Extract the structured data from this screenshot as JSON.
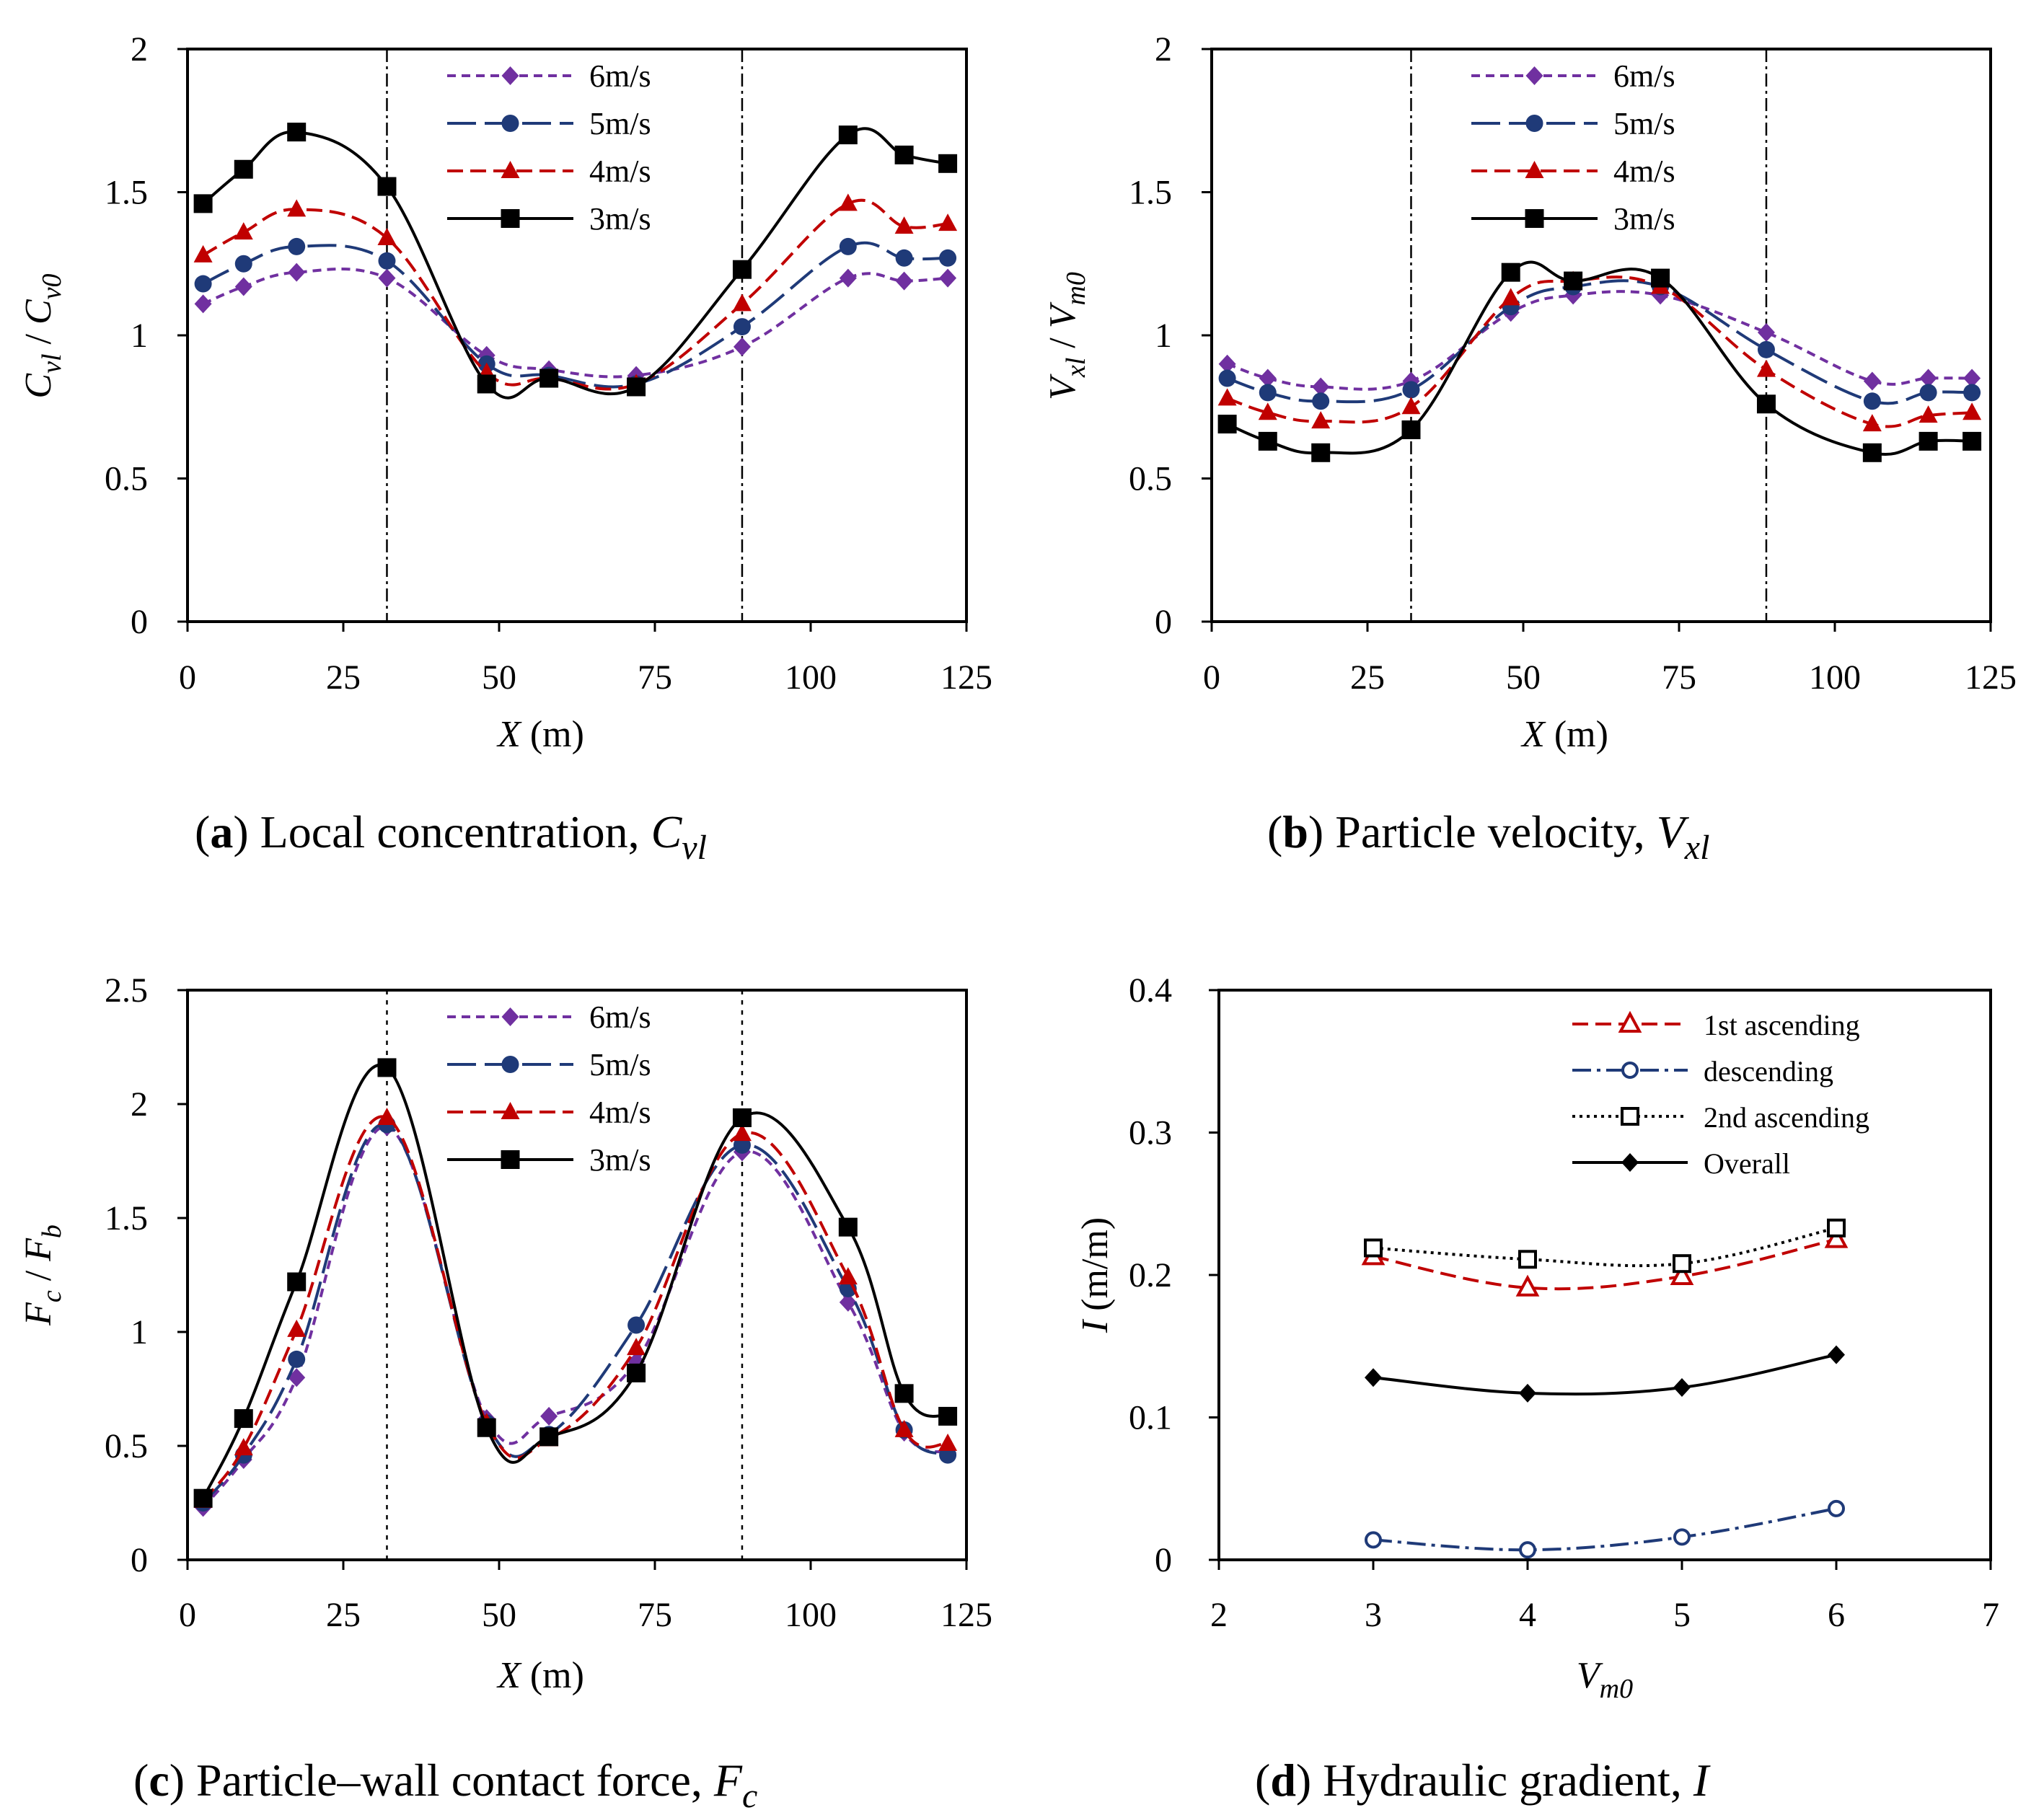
{
  "chart_data": [
    {
      "id": "a",
      "type": "line",
      "caption": {
        "letter": "a",
        "text": " Local concentration, ",
        "symbol": "C",
        "sub": "vl"
      },
      "ylabel": {
        "num": "C",
        "num_sub": "vl",
        "sep": " / ",
        "den": "C",
        "den_sub": "v0"
      },
      "xlabel": {
        "var": "X",
        "unit": " (m)"
      },
      "xlim": [
        0,
        125
      ],
      "ylim": [
        0,
        2
      ],
      "xticks": [
        0,
        25,
        50,
        75,
        100,
        125
      ],
      "yticks": [
        0,
        0.5,
        1,
        1.5,
        2
      ],
      "ytick_labels": [
        "0",
        "0.5",
        "1",
        "1.5",
        "2"
      ],
      "vlines": [
        32,
        89
      ],
      "x": [
        2.5,
        9,
        17.5,
        32,
        48,
        58,
        72,
        89,
        106,
        115,
        122
      ],
      "series": [
        {
          "name": "6m/s",
          "values": [
            1.11,
            1.17,
            1.22,
            1.2,
            0.93,
            0.88,
            0.86,
            0.96,
            1.2,
            1.19,
            1.2
          ],
          "color": "#7030a0",
          "marker": "diamond",
          "dash": "12 8"
        },
        {
          "name": "5m/s",
          "values": [
            1.18,
            1.25,
            1.31,
            1.26,
            0.9,
            0.86,
            0.83,
            1.03,
            1.31,
            1.27,
            1.27
          ],
          "color": "#1f3a78",
          "marker": "circle",
          "dash": "40 12"
        },
        {
          "name": "4m/s",
          "values": [
            1.28,
            1.36,
            1.44,
            1.34,
            0.87,
            0.85,
            0.83,
            1.11,
            1.46,
            1.38,
            1.39
          ],
          "color": "#c00000",
          "marker": "triangle",
          "dash": "22 10"
        },
        {
          "name": "3m/s",
          "values": [
            1.46,
            1.58,
            1.71,
            1.52,
            0.83,
            0.85,
            0.82,
            1.23,
            1.7,
            1.63,
            1.6
          ],
          "color": "#000000",
          "marker": "square",
          "dash": ""
        }
      ]
    },
    {
      "id": "b",
      "type": "line",
      "caption": {
        "letter": "b",
        "text": " Particle velocity, ",
        "symbol": "V",
        "sub": "xl"
      },
      "ylabel": {
        "num": "V",
        "num_sub": "xl",
        "sep": " / ",
        "den": "V",
        "den_sub": "m0"
      },
      "xlabel": {
        "var": "X",
        "unit": " (m)"
      },
      "xlim": [
        0,
        125
      ],
      "ylim": [
        0,
        2
      ],
      "xticks": [
        0,
        25,
        50,
        75,
        100,
        125
      ],
      "yticks": [
        0,
        0.5,
        1,
        1.5,
        2
      ],
      "ytick_labels": [
        "0",
        "0.5",
        "1",
        "1.5",
        "2"
      ],
      "vlines": [
        32,
        89
      ],
      "x": [
        2.5,
        9,
        17.5,
        32,
        48,
        58,
        72,
        89,
        106,
        115,
        122
      ],
      "series": [
        {
          "name": "6m/s",
          "values": [
            0.9,
            0.85,
            0.82,
            0.84,
            1.08,
            1.14,
            1.14,
            1.01,
            0.84,
            0.85,
            0.85
          ],
          "color": "#7030a0",
          "marker": "diamond",
          "dash": "12 8"
        },
        {
          "name": "5m/s",
          "values": [
            0.85,
            0.8,
            0.77,
            0.81,
            1.1,
            1.17,
            1.17,
            0.95,
            0.77,
            0.8,
            0.8
          ],
          "color": "#1f3a78",
          "marker": "circle",
          "dash": "40 12"
        },
        {
          "name": "4m/s",
          "values": [
            0.78,
            0.73,
            0.7,
            0.75,
            1.13,
            1.19,
            1.17,
            0.88,
            0.69,
            0.72,
            0.73
          ],
          "color": "#c00000",
          "marker": "triangle",
          "dash": "22 10"
        },
        {
          "name": "3m/s",
          "values": [
            0.69,
            0.63,
            0.59,
            0.67,
            1.22,
            1.19,
            1.2,
            0.76,
            0.59,
            0.63,
            0.63
          ],
          "color": "#000000",
          "marker": "square",
          "dash": ""
        }
      ]
    },
    {
      "id": "c",
      "type": "line",
      "caption": {
        "letter": "c",
        "text": " Particle–wall contact force, ",
        "symbol": "F",
        "sub": "c"
      },
      "ylabel": {
        "num": "F",
        "num_sub": "c",
        "sep": " / ",
        "den": "F",
        "den_sub": "b"
      },
      "xlabel": {
        "var": "X",
        "unit": " (m)"
      },
      "xlim": [
        0,
        125
      ],
      "ylim": [
        0,
        2.5
      ],
      "xticks": [
        0,
        25,
        50,
        75,
        100,
        125
      ],
      "yticks": [
        0,
        0.5,
        1,
        1.5,
        2,
        2.5
      ],
      "ytick_labels": [
        "0",
        "0.5",
        "1",
        "1.5",
        "2",
        "2.5"
      ],
      "vlines": [
        32,
        89
      ],
      "x": [
        2.5,
        9,
        17.5,
        32,
        48,
        58,
        72,
        89,
        106,
        115,
        122
      ],
      "series": [
        {
          "name": "6m/s",
          "values": [
            0.23,
            0.44,
            0.8,
            1.9,
            0.62,
            0.63,
            0.87,
            1.79,
            1.13,
            0.56,
            0.47
          ],
          "color": "#7030a0",
          "marker": "diamond",
          "dash": "12 8"
        },
        {
          "name": "5m/s",
          "values": [
            0.25,
            0.46,
            0.88,
            1.91,
            0.6,
            0.55,
            1.03,
            1.82,
            1.19,
            0.57,
            0.46
          ],
          "color": "#1f3a78",
          "marker": "circle",
          "dash": "40 12"
        },
        {
          "name": "4m/s",
          "values": [
            0.26,
            0.49,
            1.01,
            1.94,
            0.6,
            0.53,
            0.93,
            1.87,
            1.24,
            0.57,
            0.51
          ],
          "color": "#c00000",
          "marker": "triangle",
          "dash": "22 10"
        },
        {
          "name": "3m/s",
          "values": [
            0.27,
            0.62,
            1.22,
            2.16,
            0.58,
            0.54,
            0.82,
            1.94,
            1.46,
            0.73,
            0.63
          ],
          "color": "#000000",
          "marker": "square",
          "dash": ""
        }
      ]
    },
    {
      "id": "d",
      "type": "line",
      "caption": {
        "letter": "d",
        "text": " Hydraulic gradient, ",
        "symbol": "I",
        "sub": ""
      },
      "ylabel": {
        "num": "I",
        "num_sub": "",
        "sep": "  (m/m)",
        "den": "",
        "den_sub": ""
      },
      "xlabel": {
        "var": "V",
        "var_sub": "m0",
        "unit": ""
      },
      "xlim": [
        2,
        7
      ],
      "ylim": [
        0,
        0.4
      ],
      "xticks": [
        2,
        3,
        4,
        5,
        6,
        7
      ],
      "yticks": [
        0,
        0.1,
        0.2,
        0.3,
        0.4
      ],
      "ytick_labels": [
        "0",
        "0.1",
        "0.2",
        "0.3",
        "0.4"
      ],
      "vlines": [],
      "x": [
        3,
        4,
        5,
        6
      ],
      "series": [
        {
          "name": "1st ascending",
          "values": [
            0.213,
            0.191,
            0.199,
            0.225
          ],
          "color": "#c00000",
          "marker": "triangle-open",
          "dash": "22 10"
        },
        {
          "name": "descending",
          "values": [
            0.014,
            0.007,
            0.016,
            0.036
          ],
          "color": "#1f3a78",
          "marker": "circle-open",
          "dash": "26 8 5 8"
        },
        {
          "name": "2nd ascending",
          "values": [
            0.219,
            0.211,
            0.208,
            0.233
          ],
          "color": "#000000",
          "marker": "square-open",
          "dash": "4 6"
        },
        {
          "name": "Overall",
          "values": [
            0.128,
            0.117,
            0.121,
            0.144
          ],
          "color": "#000000",
          "marker": "diamond",
          "dash": ""
        }
      ]
    }
  ]
}
